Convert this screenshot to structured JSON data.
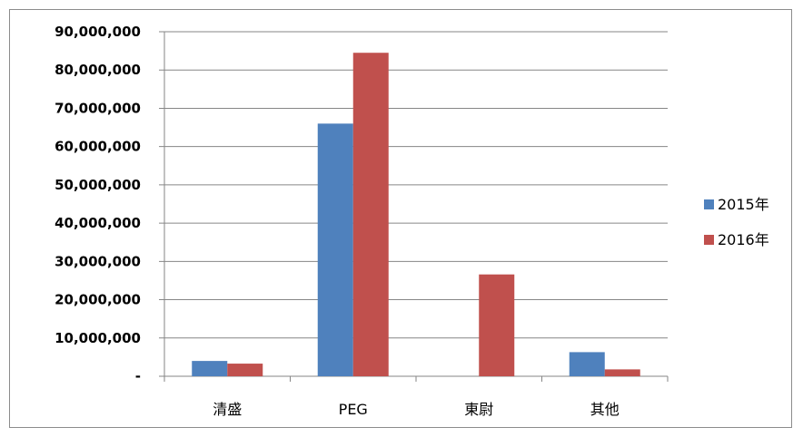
{
  "chart_data": {
    "type": "bar",
    "title": "",
    "xlabel": "",
    "ylabel": "",
    "categories": [
      "清盛",
      "PEG",
      "東尉",
      "其他"
    ],
    "series": [
      {
        "name": "2015年",
        "color": "#4f81bd",
        "values": [
          4000000,
          66000000,
          0,
          6300000
        ]
      },
      {
        "name": "2016年",
        "color": "#c0504d",
        "values": [
          3300000,
          84500000,
          26600000,
          1800000
        ]
      }
    ],
    "ylim": [
      0,
      90000000
    ],
    "yticks": [
      0,
      10000000,
      20000000,
      30000000,
      40000000,
      50000000,
      60000000,
      70000000,
      80000000,
      90000000
    ],
    "ytick_labels": [
      "-",
      "10,000,000",
      "20,000,000",
      "30,000,000",
      "40,000,000",
      "50,000,000",
      "60,000,000",
      "70,000,000",
      "80,000,000",
      "90,000,000"
    ],
    "grid": true,
    "legend_position": "right"
  }
}
